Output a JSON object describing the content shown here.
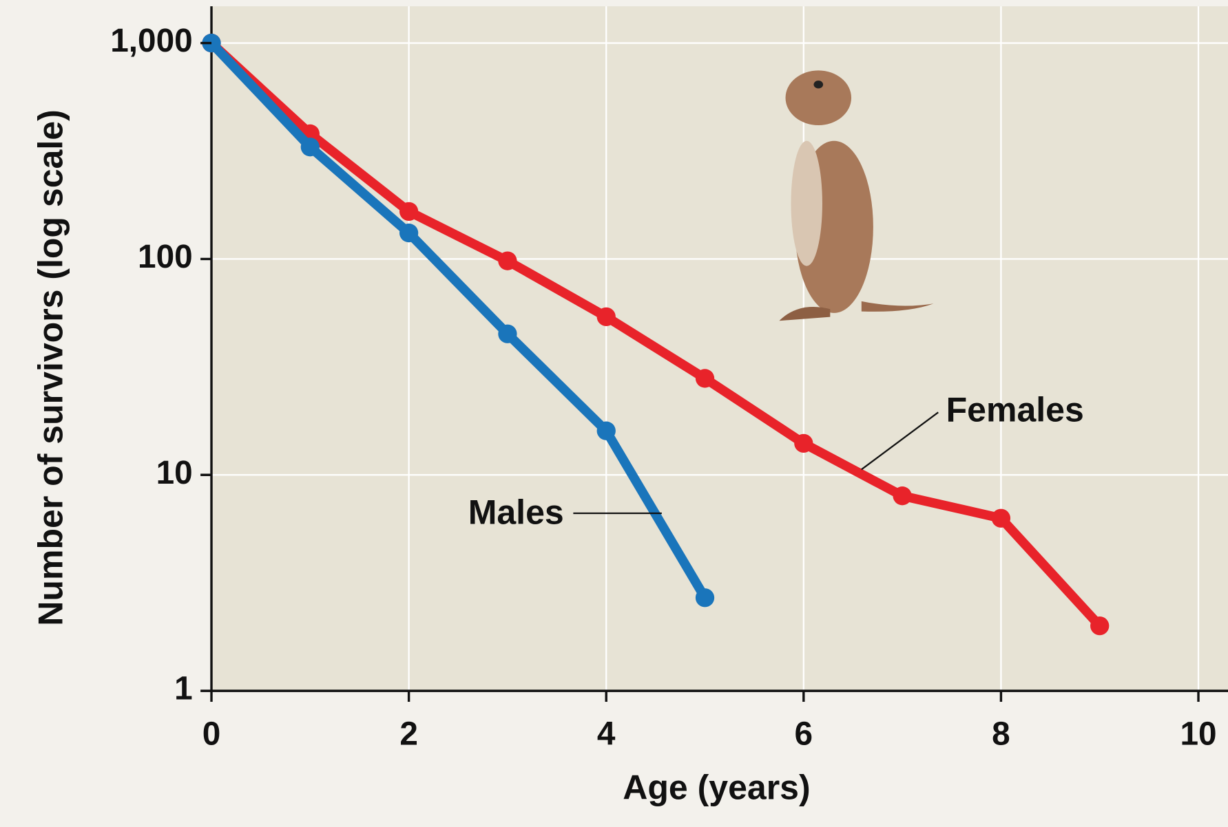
{
  "chart_data": {
    "type": "line",
    "x_label": "Age (years)",
    "y_label": "Number of survivors (log scale)",
    "log_y": true,
    "grid": true,
    "xlim": [
      0,
      10.3
    ],
    "ylim": [
      1,
      1480
    ],
    "xticks": [
      0,
      2,
      4,
      6,
      8,
      10
    ],
    "yticks": [
      1,
      10,
      100,
      {
        "value": 1000,
        "label": "1,000"
      }
    ],
    "series": [
      {
        "name": "Males",
        "color": "#1a75bb",
        "x": [
          0,
          1,
          2,
          3,
          4,
          5
        ],
        "values": [
          1000,
          330,
          132,
          45,
          16,
          2.7
        ]
      },
      {
        "name": "Females",
        "color": "#e8232a",
        "x": [
          0,
          1,
          2,
          3,
          4,
          5,
          6,
          7,
          8,
          9
        ],
        "values": [
          1000,
          380,
          166,
          98,
          54,
          28,
          14,
          8,
          6.3,
          2
        ]
      }
    ]
  }
}
